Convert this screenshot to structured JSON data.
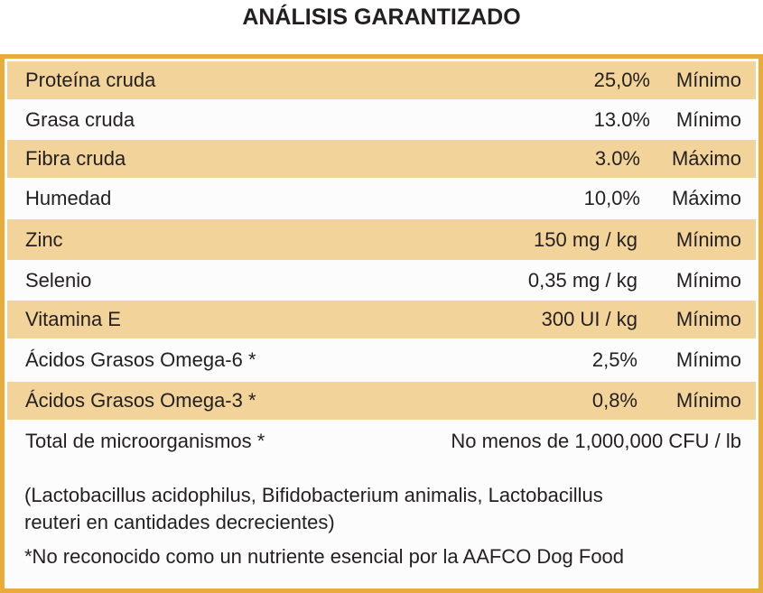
{
  "title": "ANÁLISIS GARANTIZADO",
  "rows": [
    {
      "name": "Proteína cruda",
      "value": "25,0%",
      "limit": "Mínimo"
    },
    {
      "name": "Grasa cruda",
      "value": "13.0%",
      "limit": "Mínimo"
    },
    {
      "name": "Fibra cruda",
      "value": "3.0%",
      "limit": "Máximo"
    },
    {
      "name": "Humedad",
      "value": "10,0%",
      "limit": "Máximo"
    },
    {
      "name": "Zinc",
      "value": "150 mg / kg",
      "limit": "Mínimo"
    },
    {
      "name": "Selenio",
      "value": "0,35 mg / kg",
      "limit": "Mínimo"
    },
    {
      "name": "Vitamina E",
      "value": "300 UI / kg",
      "limit": "Mínimo"
    },
    {
      "name": "Ácidos Grasos Omega-6 *",
      "value": "2,5%",
      "limit": "Mínimo"
    },
    {
      "name": "Ácidos Grasos Omega-3 *",
      "value": "0,8%",
      "limit": "Mínimo"
    }
  ],
  "microorganisms": {
    "label": "Total de microorganismos *",
    "value": "No menos de 1,000,000 CFU / lb"
  },
  "strains_line1": "(Lactobacillus acidophilus, Bifidobacterium animalis, Lactobacillus",
  "strains_line2": "reuteri en cantidades decrecientes)",
  "footnote": "*No reconocido como un nutriente esencial por la AAFCO Dog Food",
  "colors": {
    "border": "#e8ac3c",
    "shade": "#f2d49a",
    "text": "#231f20"
  }
}
